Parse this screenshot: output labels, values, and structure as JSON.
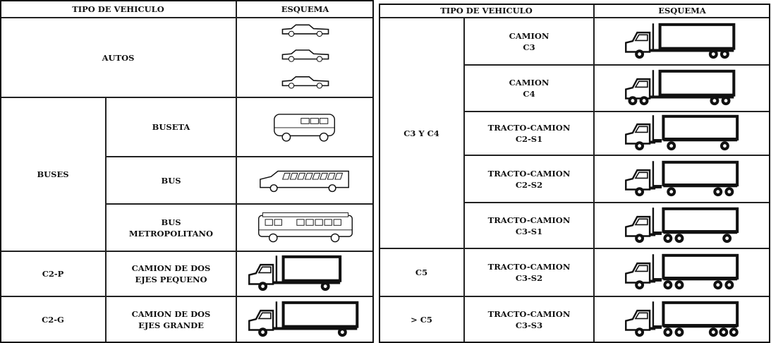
{
  "left_table": {
    "header": [
      "TIPO DE VEHICULO",
      "ESQUEMA"
    ],
    "rows": [
      {
        "class": "AUTOS"
      },
      {
        "class": "BUSES",
        "types": [
          [
            "BUSETA"
          ],
          [
            "BUS"
          ],
          [
            "BUS",
            "METROPOLITANO"
          ]
        ]
      },
      {
        "class": "C2-P",
        "types": [
          [
            "CAMION DE DOS",
            "EJES PEQUENO"
          ]
        ]
      },
      {
        "class": "C2-G",
        "types": [
          [
            "CAMION DE DOS",
            "EJES GRANDE"
          ]
        ]
      }
    ]
  },
  "right_table": {
    "header": [
      "TIPO DE VEHICULO",
      "ESQUEMA"
    ],
    "rows": [
      {
        "class": "C3 Y C4",
        "types": [
          [
            "CAMION",
            "C3"
          ],
          [
            "CAMION",
            "C4"
          ],
          [
            "TRACTO-CAMION",
            "C2-S1"
          ],
          [
            "TRACTO-CAMION",
            "C2-S2"
          ],
          [
            "TRACTO-CAMION",
            "C3-S1"
          ]
        ]
      },
      {
        "class": "C5",
        "types": [
          [
            "TRACTO-CAMION",
            "C3-S2"
          ]
        ]
      },
      {
        "class": "> C5",
        "types": [
          [
            "TRACTO-CAMION",
            "C3-S3"
          ]
        ]
      }
    ]
  }
}
